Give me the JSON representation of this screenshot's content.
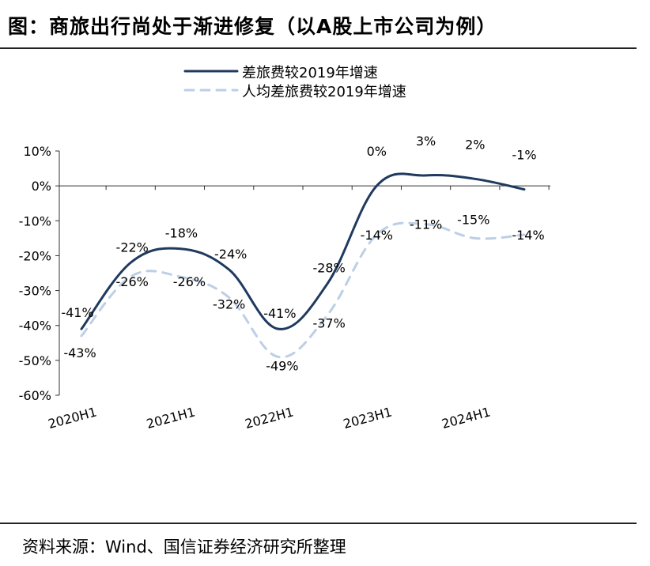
{
  "title": "图：商旅出行尚处于渐进修复（以A股上市公司为例）",
  "source": "资料来源：Wind、国信证券经济研究所整理",
  "colors": {
    "series1": "#1f3a5f",
    "series2": "#bccfe6",
    "axis": "#333333"
  },
  "chart_data": {
    "type": "line",
    "x": [
      "2020H1",
      "2020H2",
      "2021H1",
      "2021H2",
      "2022H1",
      "2022H2",
      "2023H1",
      "2023H2",
      "2024H1",
      "2024H2"
    ],
    "x_tick_labels": [
      "2020H1",
      "2021H1",
      "2022H1",
      "2023H1",
      "2024H1"
    ],
    "y_tick_labels": [
      "10%",
      "0%",
      "-10%",
      "-20%",
      "-30%",
      "-40%",
      "-50%",
      "-60%"
    ],
    "ylim": [
      -60,
      10
    ],
    "legend_position": "top",
    "series": [
      {
        "name": "差旅费较2019年增速",
        "style": "solid",
        "values": [
          -41,
          -22,
          -18,
          -24,
          -41,
          -28,
          0,
          3,
          2,
          -1
        ],
        "labels": [
          "-41%",
          "-22%",
          "-18%",
          "-24%",
          "-41%",
          "-28%",
          "0%",
          "3%",
          "2%",
          "-1%"
        ]
      },
      {
        "name": "人均差旅费较2019年增速",
        "style": "dashed",
        "values": [
          -43,
          -26,
          -26,
          -32,
          -49,
          -37,
          -14,
          -11,
          -15,
          -14
        ],
        "labels": [
          "-43%",
          "-26%",
          "-26%",
          "-32%",
          "-49%",
          "-37%",
          "-14%",
          "-11%",
          "-15%",
          "-14%"
        ]
      }
    ]
  }
}
